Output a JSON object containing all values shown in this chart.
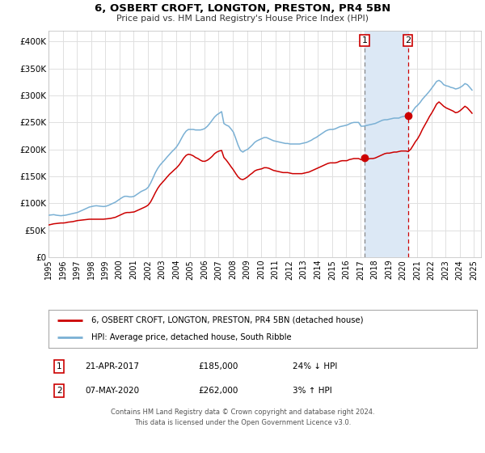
{
  "title": "6, OSBERT CROFT, LONGTON, PRESTON, PR4 5BN",
  "subtitle": "Price paid vs. HM Land Registry's House Price Index (HPI)",
  "ylim": [
    0,
    420000
  ],
  "yticks": [
    0,
    50000,
    100000,
    150000,
    200000,
    250000,
    300000,
    350000,
    400000
  ],
  "ytick_labels": [
    "£0",
    "£50K",
    "£100K",
    "£150K",
    "£200K",
    "£250K",
    "£300K",
    "£350K",
    "£400K"
  ],
  "xlim_start": 1995.0,
  "xlim_end": 2025.5,
  "background_color": "#ffffff",
  "plot_bg_color": "#ffffff",
  "grid_color": "#e0e0e0",
  "marker1_year": 2017.3,
  "marker1_price": 185000,
  "marker1_date": "21-APR-2017",
  "marker1_pct": "24% ↓ HPI",
  "marker2_year": 2020.35,
  "marker2_price": 262000,
  "marker2_date": "07-MAY-2020",
  "marker2_pct": "3% ↑ HPI",
  "shade_color": "#dce8f5",
  "red_line_color": "#cc0000",
  "blue_line_color": "#7ab0d4",
  "legend_label_red": "6, OSBERT CROFT, LONGTON, PRESTON, PR4 5BN (detached house)",
  "legend_label_blue": "HPI: Average price, detached house, South Ribble",
  "footer1": "Contains HM Land Registry data © Crown copyright and database right 2024.",
  "footer2": "This data is licensed under the Open Government Licence v3.0.",
  "hpi_data": [
    [
      1995.04,
      78000
    ],
    [
      1995.21,
      78500
    ],
    [
      1995.37,
      79000
    ],
    [
      1995.54,
      78000
    ],
    [
      1995.71,
      77500
    ],
    [
      1995.87,
      77000
    ],
    [
      1996.04,
      77500
    ],
    [
      1996.21,
      78000
    ],
    [
      1996.37,
      79000
    ],
    [
      1996.54,
      80000
    ],
    [
      1996.71,
      81000
    ],
    [
      1996.87,
      82000
    ],
    [
      1997.04,
      83000
    ],
    [
      1997.21,
      85000
    ],
    [
      1997.37,
      87000
    ],
    [
      1997.54,
      89000
    ],
    [
      1997.71,
      91000
    ],
    [
      1997.87,
      93000
    ],
    [
      1998.04,
      94000
    ],
    [
      1998.21,
      95000
    ],
    [
      1998.37,
      95500
    ],
    [
      1998.54,
      95000
    ],
    [
      1998.71,
      94500
    ],
    [
      1998.87,
      94000
    ],
    [
      1999.04,
      94500
    ],
    [
      1999.21,
      96000
    ],
    [
      1999.37,
      98000
    ],
    [
      1999.54,
      100000
    ],
    [
      1999.71,
      102000
    ],
    [
      1999.87,
      105000
    ],
    [
      2000.04,
      108000
    ],
    [
      2000.21,
      111000
    ],
    [
      2000.37,
      113000
    ],
    [
      2000.54,
      113000
    ],
    [
      2000.71,
      112000
    ],
    [
      2000.87,
      112000
    ],
    [
      2001.04,
      113000
    ],
    [
      2001.21,
      116000
    ],
    [
      2001.37,
      119000
    ],
    [
      2001.54,
      122000
    ],
    [
      2001.71,
      124000
    ],
    [
      2001.87,
      126000
    ],
    [
      2002.04,
      130000
    ],
    [
      2002.21,
      138000
    ],
    [
      2002.37,
      147000
    ],
    [
      2002.54,
      157000
    ],
    [
      2002.71,
      165000
    ],
    [
      2002.87,
      171000
    ],
    [
      2003.04,
      176000
    ],
    [
      2003.21,
      181000
    ],
    [
      2003.37,
      186000
    ],
    [
      2003.54,
      191000
    ],
    [
      2003.71,
      196000
    ],
    [
      2003.87,
      200000
    ],
    [
      2004.04,
      205000
    ],
    [
      2004.21,
      212000
    ],
    [
      2004.37,
      220000
    ],
    [
      2004.54,
      228000
    ],
    [
      2004.71,
      234000
    ],
    [
      2004.87,
      237000
    ],
    [
      2005.04,
      237000
    ],
    [
      2005.21,
      237000
    ],
    [
      2005.37,
      236000
    ],
    [
      2005.54,
      236000
    ],
    [
      2005.71,
      236000
    ],
    [
      2005.87,
      237000
    ],
    [
      2006.04,
      239000
    ],
    [
      2006.21,
      243000
    ],
    [
      2006.37,
      248000
    ],
    [
      2006.54,
      254000
    ],
    [
      2006.71,
      260000
    ],
    [
      2006.87,
      264000
    ],
    [
      2007.04,
      267000
    ],
    [
      2007.21,
      270000
    ],
    [
      2007.37,
      248000
    ],
    [
      2007.54,
      245000
    ],
    [
      2007.71,
      243000
    ],
    [
      2007.87,
      238000
    ],
    [
      2008.04,
      232000
    ],
    [
      2008.21,
      220000
    ],
    [
      2008.37,
      208000
    ],
    [
      2008.54,
      198000
    ],
    [
      2008.71,
      195000
    ],
    [
      2008.87,
      198000
    ],
    [
      2009.04,
      200000
    ],
    [
      2009.21,
      204000
    ],
    [
      2009.37,
      208000
    ],
    [
      2009.54,
      213000
    ],
    [
      2009.71,
      216000
    ],
    [
      2009.87,
      218000
    ],
    [
      2010.04,
      220000
    ],
    [
      2010.21,
      222000
    ],
    [
      2010.37,
      222000
    ],
    [
      2010.54,
      220000
    ],
    [
      2010.71,
      218000
    ],
    [
      2010.87,
      216000
    ],
    [
      2011.04,
      215000
    ],
    [
      2011.21,
      214000
    ],
    [
      2011.37,
      213000
    ],
    [
      2011.54,
      212000
    ],
    [
      2011.71,
      211000
    ],
    [
      2011.87,
      211000
    ],
    [
      2012.04,
      210000
    ],
    [
      2012.21,
      210000
    ],
    [
      2012.37,
      210000
    ],
    [
      2012.54,
      210000
    ],
    [
      2012.71,
      210000
    ],
    [
      2012.87,
      211000
    ],
    [
      2013.04,
      212000
    ],
    [
      2013.21,
      213000
    ],
    [
      2013.37,
      215000
    ],
    [
      2013.54,
      217000
    ],
    [
      2013.71,
      220000
    ],
    [
      2013.87,
      222000
    ],
    [
      2014.04,
      225000
    ],
    [
      2014.21,
      228000
    ],
    [
      2014.37,
      231000
    ],
    [
      2014.54,
      234000
    ],
    [
      2014.71,
      236000
    ],
    [
      2014.87,
      237000
    ],
    [
      2015.04,
      237000
    ],
    [
      2015.21,
      238000
    ],
    [
      2015.37,
      240000
    ],
    [
      2015.54,
      242000
    ],
    [
      2015.71,
      243000
    ],
    [
      2015.87,
      244000
    ],
    [
      2016.04,
      245000
    ],
    [
      2016.21,
      247000
    ],
    [
      2016.37,
      249000
    ],
    [
      2016.54,
      250000
    ],
    [
      2016.71,
      250000
    ],
    [
      2016.87,
      250000
    ],
    [
      2017.04,
      243000
    ],
    [
      2017.21,
      243000
    ],
    [
      2017.37,
      244000
    ],
    [
      2017.54,
      245000
    ],
    [
      2017.71,
      246000
    ],
    [
      2017.87,
      247000
    ],
    [
      2018.04,
      248000
    ],
    [
      2018.21,
      250000
    ],
    [
      2018.37,
      252000
    ],
    [
      2018.54,
      254000
    ],
    [
      2018.71,
      255000
    ],
    [
      2018.87,
      255000
    ],
    [
      2019.04,
      256000
    ],
    [
      2019.21,
      257000
    ],
    [
      2019.37,
      258000
    ],
    [
      2019.54,
      258000
    ],
    [
      2019.71,
      258000
    ],
    [
      2019.87,
      260000
    ],
    [
      2020.04,
      261000
    ],
    [
      2020.21,
      262000
    ],
    [
      2020.37,
      260000
    ],
    [
      2020.54,
      265000
    ],
    [
      2020.71,
      272000
    ],
    [
      2020.87,
      278000
    ],
    [
      2021.04,
      282000
    ],
    [
      2021.21,
      287000
    ],
    [
      2021.37,
      293000
    ],
    [
      2021.54,
      298000
    ],
    [
      2021.71,
      303000
    ],
    [
      2021.87,
      308000
    ],
    [
      2022.04,
      314000
    ],
    [
      2022.21,
      320000
    ],
    [
      2022.37,
      326000
    ],
    [
      2022.54,
      328000
    ],
    [
      2022.71,
      325000
    ],
    [
      2022.87,
      320000
    ],
    [
      2023.04,
      318000
    ],
    [
      2023.21,
      317000
    ],
    [
      2023.37,
      315000
    ],
    [
      2023.54,
      314000
    ],
    [
      2023.71,
      312000
    ],
    [
      2023.87,
      313000
    ],
    [
      2024.04,
      315000
    ],
    [
      2024.21,
      318000
    ],
    [
      2024.37,
      322000
    ],
    [
      2024.54,
      320000
    ],
    [
      2024.71,
      315000
    ],
    [
      2024.87,
      310000
    ]
  ],
  "price_data": [
    [
      1995.04,
      60000
    ],
    [
      1995.21,
      61000
    ],
    [
      1995.37,
      62000
    ],
    [
      1995.54,
      62500
    ],
    [
      1995.71,
      63000
    ],
    [
      1995.87,
      63500
    ],
    [
      1996.04,
      63500
    ],
    [
      1996.21,
      64000
    ],
    [
      1996.37,
      65000
    ],
    [
      1996.54,
      65500
    ],
    [
      1996.71,
      66000
    ],
    [
      1996.87,
      67000
    ],
    [
      1997.04,
      68000
    ],
    [
      1997.21,
      68500
    ],
    [
      1997.37,
      69000
    ],
    [
      1997.54,
      69500
    ],
    [
      1997.71,
      70000
    ],
    [
      1997.87,
      70500
    ],
    [
      1998.04,
      70500
    ],
    [
      1998.21,
      70500
    ],
    [
      1998.37,
      70500
    ],
    [
      1998.54,
      70500
    ],
    [
      1998.71,
      70500
    ],
    [
      1998.87,
      70500
    ],
    [
      1999.04,
      71000
    ],
    [
      1999.21,
      71500
    ],
    [
      1999.37,
      72000
    ],
    [
      1999.54,
      73000
    ],
    [
      1999.71,
      74000
    ],
    [
      1999.87,
      76000
    ],
    [
      2000.04,
      78000
    ],
    [
      2000.21,
      80000
    ],
    [
      2000.37,
      82000
    ],
    [
      2000.54,
      83000
    ],
    [
      2000.71,
      83000
    ],
    [
      2000.87,
      83500
    ],
    [
      2001.04,
      84000
    ],
    [
      2001.21,
      86000
    ],
    [
      2001.37,
      88000
    ],
    [
      2001.54,
      90000
    ],
    [
      2001.71,
      92000
    ],
    [
      2001.87,
      94000
    ],
    [
      2002.04,
      97000
    ],
    [
      2002.21,
      103000
    ],
    [
      2002.37,
      111000
    ],
    [
      2002.54,
      120000
    ],
    [
      2002.71,
      128000
    ],
    [
      2002.87,
      134000
    ],
    [
      2003.04,
      139000
    ],
    [
      2003.21,
      144000
    ],
    [
      2003.37,
      149000
    ],
    [
      2003.54,
      154000
    ],
    [
      2003.71,
      158000
    ],
    [
      2003.87,
      162000
    ],
    [
      2004.04,
      166000
    ],
    [
      2004.21,
      171000
    ],
    [
      2004.37,
      177000
    ],
    [
      2004.54,
      184000
    ],
    [
      2004.71,
      189000
    ],
    [
      2004.87,
      191000
    ],
    [
      2005.04,
      190000
    ],
    [
      2005.21,
      188000
    ],
    [
      2005.37,
      185000
    ],
    [
      2005.54,
      183000
    ],
    [
      2005.71,
      180000
    ],
    [
      2005.87,
      178000
    ],
    [
      2006.04,
      178000
    ],
    [
      2006.21,
      180000
    ],
    [
      2006.37,
      183000
    ],
    [
      2006.54,
      187000
    ],
    [
      2006.71,
      192000
    ],
    [
      2006.87,
      195000
    ],
    [
      2007.04,
      197000
    ],
    [
      2007.21,
      198000
    ],
    [
      2007.37,
      185000
    ],
    [
      2007.54,
      180000
    ],
    [
      2007.71,
      174000
    ],
    [
      2007.87,
      168000
    ],
    [
      2008.04,
      162000
    ],
    [
      2008.21,
      155000
    ],
    [
      2008.37,
      149000
    ],
    [
      2008.54,
      145000
    ],
    [
      2008.71,
      144000
    ],
    [
      2008.87,
      146000
    ],
    [
      2009.04,
      149000
    ],
    [
      2009.21,
      153000
    ],
    [
      2009.37,
      156000
    ],
    [
      2009.54,
      160000
    ],
    [
      2009.71,
      162000
    ],
    [
      2009.87,
      163000
    ],
    [
      2010.04,
      164000
    ],
    [
      2010.21,
      166000
    ],
    [
      2010.37,
      166000
    ],
    [
      2010.54,
      165000
    ],
    [
      2010.71,
      163000
    ],
    [
      2010.87,
      161000
    ],
    [
      2011.04,
      160000
    ],
    [
      2011.21,
      159000
    ],
    [
      2011.37,
      158000
    ],
    [
      2011.54,
      157000
    ],
    [
      2011.71,
      157000
    ],
    [
      2011.87,
      157000
    ],
    [
      2012.04,
      156000
    ],
    [
      2012.21,
      155000
    ],
    [
      2012.37,
      155000
    ],
    [
      2012.54,
      155000
    ],
    [
      2012.71,
      155000
    ],
    [
      2012.87,
      155000
    ],
    [
      2013.04,
      156000
    ],
    [
      2013.21,
      157000
    ],
    [
      2013.37,
      158000
    ],
    [
      2013.54,
      160000
    ],
    [
      2013.71,
      162000
    ],
    [
      2013.87,
      164000
    ],
    [
      2014.04,
      166000
    ],
    [
      2014.21,
      168000
    ],
    [
      2014.37,
      170000
    ],
    [
      2014.54,
      172000
    ],
    [
      2014.71,
      174000
    ],
    [
      2014.87,
      175000
    ],
    [
      2015.04,
      175000
    ],
    [
      2015.21,
      175000
    ],
    [
      2015.37,
      176000
    ],
    [
      2015.54,
      178000
    ],
    [
      2015.71,
      179000
    ],
    [
      2015.87,
      179000
    ],
    [
      2016.04,
      179000
    ],
    [
      2016.21,
      181000
    ],
    [
      2016.37,
      182000
    ],
    [
      2016.54,
      183000
    ],
    [
      2016.71,
      183000
    ],
    [
      2016.87,
      183000
    ],
    [
      2017.04,
      181000
    ],
    [
      2017.21,
      181000
    ],
    [
      2017.37,
      182000
    ],
    [
      2017.54,
      182000
    ],
    [
      2017.71,
      183000
    ],
    [
      2017.87,
      183000
    ],
    [
      2018.04,
      184000
    ],
    [
      2018.21,
      186000
    ],
    [
      2018.37,
      188000
    ],
    [
      2018.54,
      190000
    ],
    [
      2018.71,
      192000
    ],
    [
      2018.87,
      193000
    ],
    [
      2019.04,
      193000
    ],
    [
      2019.21,
      194000
    ],
    [
      2019.37,
      195000
    ],
    [
      2019.54,
      195000
    ],
    [
      2019.71,
      196000
    ],
    [
      2019.87,
      197000
    ],
    [
      2020.04,
      197000
    ],
    [
      2020.21,
      197000
    ],
    [
      2020.37,
      196000
    ],
    [
      2020.54,
      200000
    ],
    [
      2020.71,
      207000
    ],
    [
      2020.87,
      214000
    ],
    [
      2021.04,
      220000
    ],
    [
      2021.21,
      228000
    ],
    [
      2021.37,
      237000
    ],
    [
      2021.54,
      245000
    ],
    [
      2021.71,
      253000
    ],
    [
      2021.87,
      261000
    ],
    [
      2022.04,
      268000
    ],
    [
      2022.21,
      276000
    ],
    [
      2022.37,
      284000
    ],
    [
      2022.54,
      288000
    ],
    [
      2022.71,
      284000
    ],
    [
      2022.87,
      280000
    ],
    [
      2023.04,
      277000
    ],
    [
      2023.21,
      275000
    ],
    [
      2023.37,
      273000
    ],
    [
      2023.54,
      271000
    ],
    [
      2023.71,
      268000
    ],
    [
      2023.87,
      269000
    ],
    [
      2024.04,
      272000
    ],
    [
      2024.21,
      276000
    ],
    [
      2024.37,
      280000
    ],
    [
      2024.54,
      277000
    ],
    [
      2024.71,
      272000
    ],
    [
      2024.87,
      267000
    ]
  ]
}
